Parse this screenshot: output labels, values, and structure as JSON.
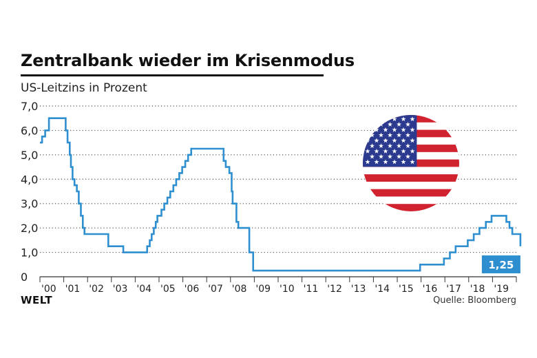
{
  "header": {
    "title": "Zentralbank wieder im Krisenmodus",
    "subtitle": "US-Leitzins in Prozent"
  },
  "footer": {
    "brand": "WELT",
    "source": "Quelle: Bloomberg"
  },
  "colors": {
    "line": "#2e8fd0",
    "grid": "#555555",
    "badge": "#2e8fd0",
    "flag_red": "#d0222f",
    "flag_blue": "#2b3a8f"
  },
  "icons": {
    "flag": "us-flag-icon"
  },
  "chart_data": {
    "type": "line",
    "line_style": "step",
    "ylim": [
      0,
      7
    ],
    "yticks": [
      0,
      1,
      2,
      3,
      4,
      5,
      6,
      7
    ],
    "ytick_labels": [
      "0",
      "1,0",
      "2,0",
      "3,0",
      "4,0",
      "5,0",
      "6,0",
      "7,0"
    ],
    "xlim": [
      2000,
      2020
    ],
    "xtick_labels": [
      "'00",
      "'01",
      "'02",
      "'03",
      "'04",
      "'05",
      "'06",
      "'07",
      "'08",
      "'09",
      "'10",
      "'11",
      "'12",
      "'13",
      "'14",
      "'15",
      "'16",
      "'17",
      "'18",
      "'19"
    ],
    "grid": "horizontal-dotted",
    "end_label": "1,25",
    "series": [
      {
        "x": [
          2000.0,
          2000.09,
          2000.22,
          2000.38,
          2000.99,
          2001.08,
          2001.16,
          2001.25,
          2001.3,
          2001.37,
          2001.45,
          2001.55,
          2001.63,
          2001.72,
          2001.8,
          2001.87,
          2001.95,
          2002.87,
          2003.5,
          2004.5,
          2004.61,
          2004.69,
          2004.78,
          2004.86,
          2004.93,
          2005.1,
          2005.22,
          2005.35,
          2005.47,
          2005.6,
          2005.72,
          2005.85,
          2005.97,
          2006.1,
          2006.22,
          2006.35,
          2006.49,
          2007.71,
          2007.8,
          2007.95,
          2008.05,
          2008.09,
          2008.25,
          2008.33,
          2008.79,
          2008.95,
          2015.96,
          2016.96,
          2017.21,
          2017.45,
          2017.96,
          2018.21,
          2018.45,
          2018.72,
          2018.96,
          2019.58,
          2019.71,
          2019.83,
          2020.17
        ],
        "y": [
          5.5,
          5.75,
          6.0,
          6.5,
          6.5,
          6.0,
          5.5,
          5.0,
          4.5,
          4.0,
          3.75,
          3.5,
          3.0,
          2.5,
          2.0,
          1.75,
          1.75,
          1.25,
          1.0,
          1.25,
          1.5,
          1.75,
          2.0,
          2.25,
          2.5,
          2.75,
          3.0,
          3.25,
          3.5,
          3.75,
          4.0,
          4.25,
          4.5,
          4.75,
          5.0,
          5.25,
          5.25,
          4.75,
          4.5,
          4.25,
          3.5,
          3.0,
          2.25,
          2.0,
          1.0,
          0.25,
          0.5,
          0.75,
          1.0,
          1.25,
          1.5,
          1.75,
          2.0,
          2.25,
          2.5,
          2.25,
          2.0,
          1.75,
          1.25
        ]
      }
    ]
  }
}
